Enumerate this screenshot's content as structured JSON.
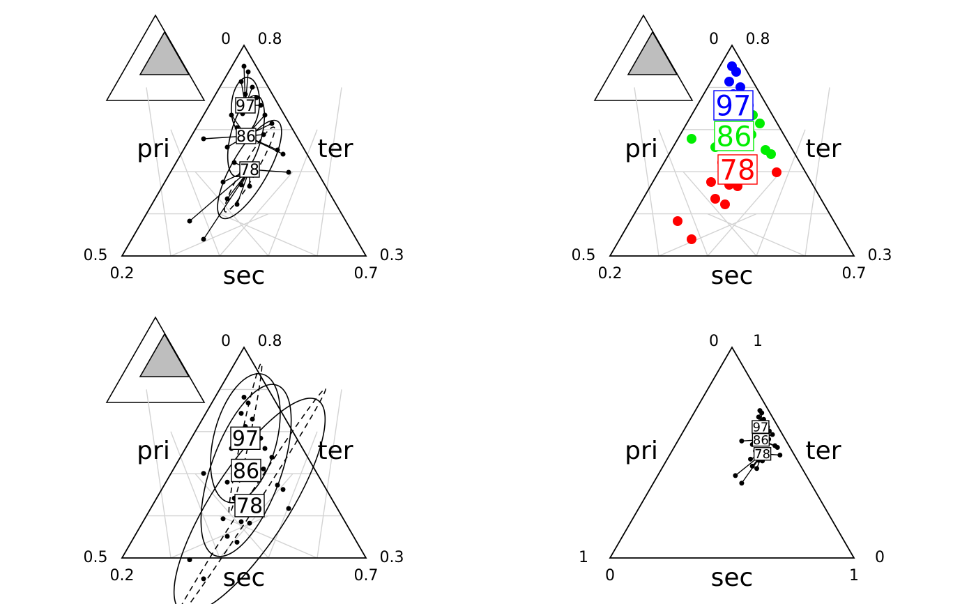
{
  "chart_data": [
    {
      "panel": "top-left",
      "type": "scatter",
      "subtype": "ternary",
      "inset_triangle": true,
      "axis_labels": {
        "left": "pri",
        "right": "ter",
        "bottom": "sec"
      },
      "corner_labels": {
        "top_left": "0",
        "top_right": "0.8",
        "bottom_left_outer": "0.5",
        "bottom_left_inner": "0.2",
        "bottom_right_outer": "0.3",
        "bottom_right_inner": "0.7"
      },
      "groups": [
        "97",
        "86",
        "78"
      ],
      "show_points": true,
      "show_spokes": true,
      "show_ellipses": true,
      "ellipse_size": "small",
      "group_label_size": "small",
      "colored": false
    },
    {
      "panel": "top-right",
      "type": "scatter",
      "subtype": "ternary",
      "inset_triangle": true,
      "axis_labels": {
        "left": "pri",
        "right": "ter",
        "bottom": "sec"
      },
      "corner_labels": {
        "top_left": "0",
        "top_right": "0.8",
        "bottom_left_outer": "0.5",
        "bottom_left_inner": "0.2",
        "bottom_right_outer": "0.3",
        "bottom_right_inner": "0.7"
      },
      "groups": [
        "97",
        "86",
        "78"
      ],
      "group_colors": {
        "97": "#0000ff",
        "86": "#00ee00",
        "78": "#ff0000"
      },
      "show_points": true,
      "show_spokes": false,
      "show_ellipses": false,
      "group_label_size": "large",
      "colored": true
    },
    {
      "panel": "bottom-left",
      "type": "scatter",
      "subtype": "ternary",
      "inset_triangle": true,
      "axis_labels": {
        "left": "pri",
        "right": "ter",
        "bottom": "sec"
      },
      "corner_labels": {
        "top_left": "0",
        "top_right": "0.8",
        "bottom_left_outer": "0.5",
        "bottom_left_inner": "0.2",
        "bottom_right_outer": "0.3",
        "bottom_right_inner": "0.7"
      },
      "groups": [
        "97",
        "86",
        "78"
      ],
      "show_points": true,
      "show_spokes": false,
      "show_ellipses": true,
      "ellipse_size": "large",
      "group_label_size": "medium",
      "colored": false
    },
    {
      "panel": "bottom-right",
      "type": "scatter",
      "subtype": "ternary",
      "inset_triangle": false,
      "axis_labels": {
        "left": "pri",
        "right": "ter",
        "bottom": "sec"
      },
      "corner_labels": {
        "top_left": "0",
        "top_right": "1",
        "bottom_left_outer": "1",
        "bottom_left_inner": "0",
        "bottom_right_outer": "0",
        "bottom_right_inner": "1"
      },
      "groups": [
        "97",
        "86",
        "78"
      ],
      "show_points": true,
      "show_spokes": true,
      "show_ellipses": false,
      "group_label_size": "small",
      "colored": false
    }
  ],
  "colors": {
    "axis": "#000000",
    "grid": "#d3d3d3",
    "inset_fill": "#bebebe"
  }
}
